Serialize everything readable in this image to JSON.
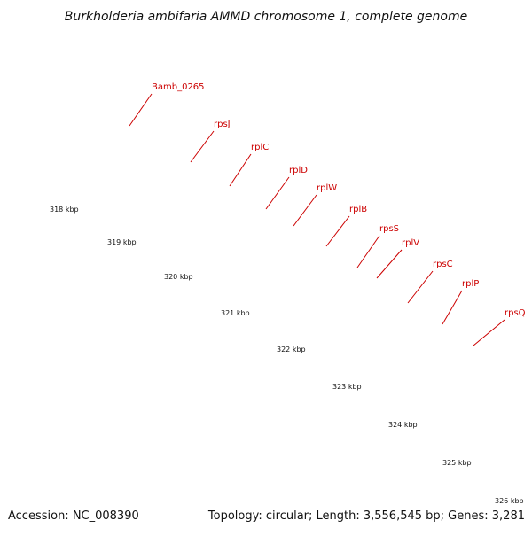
{
  "title": "Burkholderia ambifaria AMMD chromosome 1, complete genome",
  "footer": {
    "accession": "Accession: NC_008390",
    "summary": "Topology: circular; Length: 3,556,545 bp; Genes: 3,281"
  },
  "colors": {
    "backbone": "#8a8a8a",
    "backbone_light": "#d0d0d0",
    "cds": "#ff0000",
    "cds_shadow": "#b00000",
    "gene": "#f08080",
    "gene_light": "#f8b8b8",
    "label": "#cc0000",
    "tick": "#006600"
  },
  "ticks_kbp": [
    318,
    319,
    320,
    321,
    322,
    323,
    324,
    325,
    326
  ],
  "tick_labels": [
    "318 kbp",
    "319 kbp",
    "320 kbp",
    "321 kbp",
    "322 kbp",
    "323 kbp",
    "324 kbp",
    "325 kbp",
    "326 kbp"
  ],
  "genes": [
    {
      "name": "Bamb_0265"
    },
    {
      "name": "rpsJ"
    },
    {
      "name": "rplC"
    },
    {
      "name": "rplD"
    },
    {
      "name": "rplW"
    },
    {
      "name": "rplB"
    },
    {
      "name": "rpsS"
    },
    {
      "name": "rplV"
    },
    {
      "name": "rpsC"
    },
    {
      "name": "rplP"
    },
    {
      "name": "rpsQ"
    }
  ]
}
